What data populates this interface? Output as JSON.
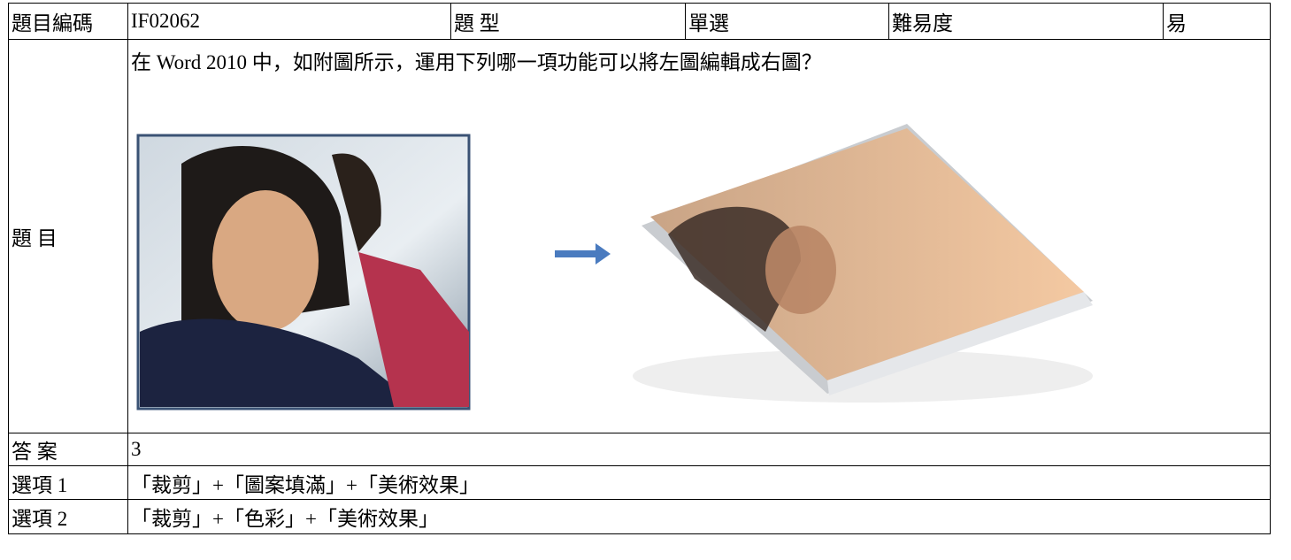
{
  "table": {
    "rows": [
      [
        "題目編碼",
        "IF02062",
        "題 型",
        "單選",
        "難易度",
        "易"
      ],
      [
        "題 目",
        "在 Word 2010 中，如附圖所示，運用下列哪一項功能可以將左圖編輯成右圖？"
      ],
      [
        "答 案",
        "3"
      ],
      [
        "選項 1",
        "「裁剪」+「圖案填滿」+「美術效果」"
      ],
      [
        "選項 2",
        "「裁剪」+「色彩」+「美術效果」"
      ]
    ]
  }
}
